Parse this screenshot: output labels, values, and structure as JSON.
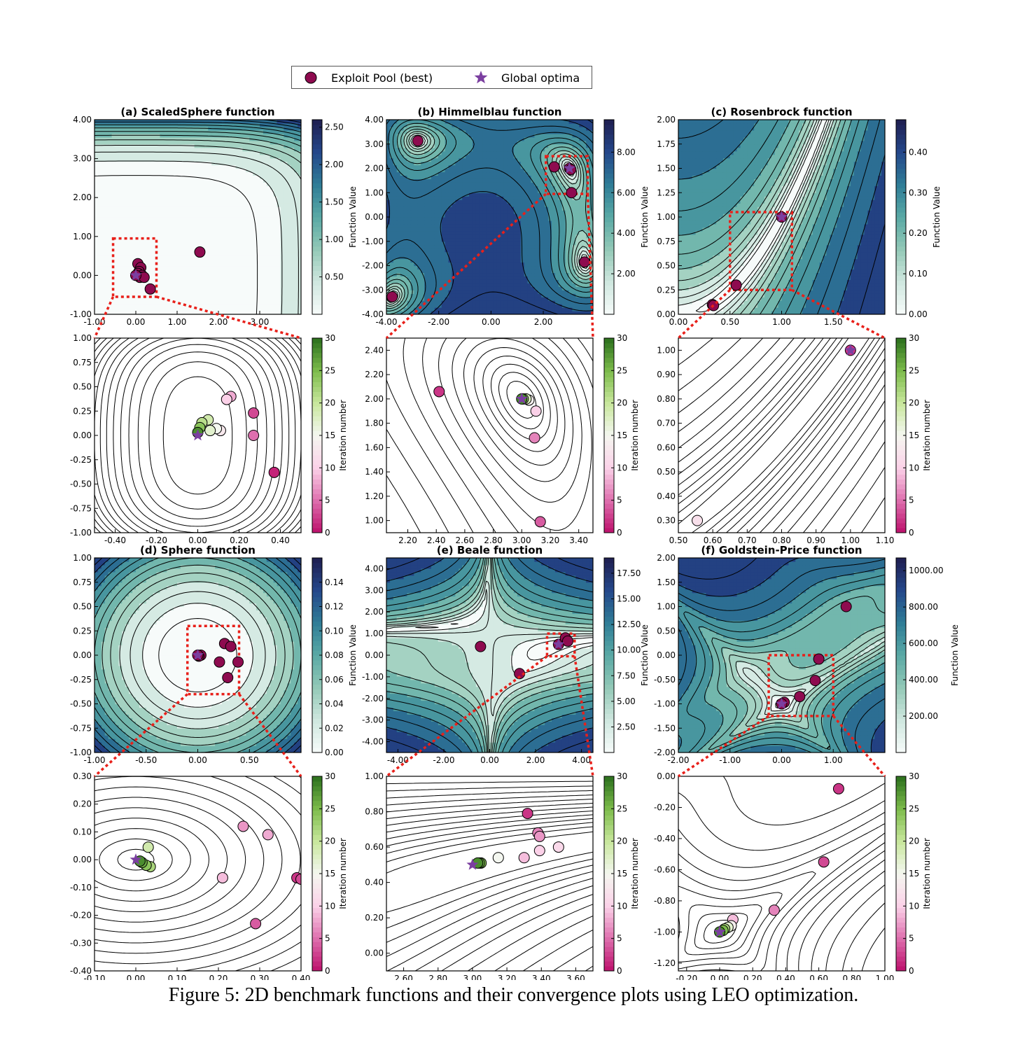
{
  "legend": {
    "items": [
      {
        "label": "Exploit Pool (best)",
        "marker": "circle",
        "color": "#8e0b4f"
      },
      {
        "label": "Global optima",
        "marker": "star",
        "color": "#7b3fa0"
      }
    ]
  },
  "caption": "Figure 5: 2D benchmark functions and their convergence plots using LEO optimization.",
  "colors": {
    "function_colormap": [
      "#f7fbfa",
      "#cfe7df",
      "#93c9b7",
      "#5aa9a5",
      "#2f7d97",
      "#24478a",
      "#1f1e50"
    ],
    "iteration_colormap": [
      "#bd0f6b",
      "#de6fae",
      "#fbd1e8",
      "#f4f7f0",
      "#c8e79c",
      "#7cbb4b",
      "#2b6f1c"
    ],
    "zoom_box": "#e8201a",
    "contour_line": "#000000"
  },
  "chart_data": [
    {
      "id": "a-top",
      "type": "contour",
      "title": "(a) ScaledSphere function",
      "xlim": [
        -1,
        4
      ],
      "ylim": [
        -1,
        4
      ],
      "xticks": [
        "-1.00",
        "0.00",
        "1.00",
        "2.00",
        "3.00"
      ],
      "yticks": [
        "-1.00",
        "0.00",
        "1.00",
        "2.00",
        "3.00",
        "4.00"
      ],
      "colorbar": {
        "label": "Function Value",
        "ticks": [
          "0.50",
          "1.00",
          "1.50",
          "2.00",
          "2.50"
        ],
        "range": [
          0,
          2.6
        ],
        "scheme": "function"
      },
      "zoom_box": [
        -0.55,
        0.5,
        -0.55,
        0.95
      ],
      "points": [
        [
          1.55,
          0.6
        ],
        [
          0.05,
          0.3
        ],
        [
          0.12,
          0.2
        ],
        [
          0.08,
          0.1
        ],
        [
          0.05,
          0.05
        ],
        [
          0.15,
          0.0
        ],
        [
          0.1,
          -0.05
        ],
        [
          0.35,
          -0.35
        ],
        [
          0.2,
          -0.05
        ],
        [
          0.0,
          0.0
        ]
      ],
      "optimum": [
        0,
        0
      ]
    },
    {
      "id": "a-bottom",
      "type": "contour",
      "title": "",
      "xlim": [
        -0.5,
        0.5
      ],
      "ylim": [
        -1,
        1
      ],
      "xticks": [
        "-0.40",
        "-0.20",
        "0.00",
        "0.20",
        "0.40"
      ],
      "yticks": [
        "-1.00",
        "-0.75",
        "-0.50",
        "-0.25",
        "0.00",
        "0.25",
        "0.50",
        "0.75",
        "1.00"
      ],
      "colorbar": {
        "label": "Iteration number",
        "ticks": [
          "0",
          "5",
          "10",
          "15",
          "20",
          "25",
          "30"
        ],
        "range": [
          0,
          30
        ],
        "scheme": "iteration"
      },
      "points": [
        [
          0.37,
          -0.38,
          1
        ],
        [
          0.27,
          0.23,
          3
        ],
        [
          0.27,
          0.0,
          5
        ],
        [
          0.16,
          0.4,
          8
        ],
        [
          0.14,
          0.37,
          10
        ],
        [
          0.11,
          0.05,
          13
        ],
        [
          0.09,
          0.07,
          15
        ],
        [
          0.06,
          0.05,
          17
        ],
        [
          0.05,
          0.16,
          19
        ],
        [
          0.02,
          0.13,
          21
        ],
        [
          0.01,
          0.08,
          24
        ],
        [
          0.0,
          0.03,
          28
        ]
      ],
      "optimum": [
        0,
        0
      ]
    },
    {
      "id": "b-top",
      "type": "contour",
      "title": "(b) Himmelblau function",
      "xlim": [
        -4,
        3.9
      ],
      "ylim": [
        -4,
        4
      ],
      "xticks": [
        "-4.00",
        "-2.00",
        "0.00",
        "2.00"
      ],
      "yticks": [
        "-4.00",
        "-3.00",
        "-2.00",
        "-1.00",
        "0.00",
        "1.00",
        "2.00",
        "3.00",
        "4.00"
      ],
      "colorbar": {
        "label": "Function Value",
        "ticks": [
          "2.00",
          "4.00",
          "6.00",
          "8.00"
        ],
        "range": [
          0,
          9.6
        ],
        "scheme": "function"
      },
      "zoom_box": [
        2.1,
        3.7,
        0.95,
        2.5
      ],
      "points": [
        [
          2.42,
          2.06
        ],
        [
          3.0,
          2.0
        ],
        [
          3.05,
          1.95
        ],
        [
          3.08,
          1.0
        ],
        [
          3.58,
          -1.85
        ],
        [
          -2.8,
          3.13
        ],
        [
          -3.78,
          -3.28
        ]
      ],
      "optimum": [
        3,
        2
      ]
    },
    {
      "id": "b-bottom",
      "type": "contour",
      "title": "",
      "xlim": [
        2.05,
        3.5
      ],
      "ylim": [
        0.9,
        2.5
      ],
      "xticks": [
        "2.20",
        "2.40",
        "2.60",
        "2.80",
        "3.00",
        "3.20",
        "3.40"
      ],
      "yticks": [
        "1.00",
        "1.20",
        "1.40",
        "1.60",
        "1.80",
        "2.00",
        "2.20",
        "2.40"
      ],
      "colorbar": {
        "label": "Iteration number",
        "ticks": [
          "0",
          "5",
          "10",
          "15",
          "20",
          "25",
          "30"
        ],
        "range": [
          0,
          30
        ],
        "scheme": "iteration"
      },
      "points": [
        [
          2.42,
          2.06,
          2
        ],
        [
          3.13,
          0.99,
          4
        ],
        [
          3.09,
          1.68,
          6
        ],
        [
          3.1,
          1.9,
          10
        ],
        [
          3.05,
          1.99,
          14
        ],
        [
          3.03,
          2.0,
          18
        ],
        [
          3.01,
          2.0,
          22
        ],
        [
          3.0,
          2.0,
          28
        ]
      ],
      "optimum": [
        3,
        2
      ]
    },
    {
      "id": "c-top",
      "type": "contour",
      "title": "(c) Rosenbrock function",
      "xlim": [
        0,
        2
      ],
      "ylim": [
        0,
        2
      ],
      "xticks": [
        "0.00",
        "0.50",
        "1.00",
        "1.50"
      ],
      "yticks": [
        "0.00",
        "0.25",
        "0.50",
        "0.75",
        "1.00",
        "1.25",
        "1.50",
        "1.75",
        "2.00"
      ],
      "colorbar": {
        "label": "Function Value",
        "ticks": [
          "0.00",
          "0.10",
          "0.20",
          "0.30",
          "0.40"
        ],
        "range": [
          0,
          0.48
        ],
        "scheme": "function"
      },
      "zoom_box": [
        0.5,
        1.1,
        0.25,
        1.05
      ],
      "points": [
        [
          0.33,
          0.1
        ],
        [
          0.34,
          0.09
        ],
        [
          0.56,
          0.3
        ],
        [
          1.0,
          1.0
        ]
      ],
      "optimum": [
        1,
        1
      ]
    },
    {
      "id": "c-bottom",
      "type": "contour",
      "title": "",
      "xlim": [
        0.5,
        1.1
      ],
      "ylim": [
        0.25,
        1.05
      ],
      "xticks": [
        "0.50",
        "0.60",
        "0.70",
        "0.80",
        "0.90",
        "1.00",
        "1.10"
      ],
      "yticks": [
        "0.30",
        "0.40",
        "0.50",
        "0.60",
        "0.70",
        "0.80",
        "0.90",
        "1.00"
      ],
      "colorbar": {
        "label": "Iteration number",
        "ticks": [
          "0",
          "5",
          "10",
          "15",
          "20",
          "25",
          "30"
        ],
        "range": [
          0,
          30
        ],
        "scheme": "iteration"
      },
      "points": [
        [
          0.555,
          0.3,
          12
        ],
        [
          1.0,
          1.0,
          2
        ]
      ],
      "optimum": [
        1,
        1
      ]
    },
    {
      "id": "d-top",
      "type": "contour",
      "title": "(d) Sphere function",
      "xlim": [
        -1,
        1
      ],
      "ylim": [
        -1,
        1
      ],
      "xticks": [
        "-1.00",
        "-0.50",
        "0.00",
        "0.50"
      ],
      "yticks": [
        "-1.00",
        "-0.75",
        "-0.50",
        "-0.25",
        "0.00",
        "0.25",
        "0.50",
        "0.75",
        "1.00"
      ],
      "colorbar": {
        "label": "Function Value",
        "ticks": [
          "0.00",
          "0.02",
          "0.04",
          "0.06",
          "0.08",
          "0.10",
          "0.12",
          "0.14"
        ],
        "range": [
          0,
          0.16
        ],
        "scheme": "function"
      },
      "zoom_box": [
        -0.1,
        0.4,
        -0.4,
        0.3
      ],
      "points": [
        [
          0.26,
          0.12
        ],
        [
          0.32,
          0.09
        ],
        [
          0.21,
          -0.07
        ],
        [
          0.29,
          -0.23
        ],
        [
          0.39,
          -0.07
        ],
        [
          0.03,
          0.0
        ],
        [
          0.01,
          -0.01
        ],
        [
          0.0,
          0.0
        ]
      ],
      "optimum": [
        0,
        0
      ]
    },
    {
      "id": "d-bottom",
      "type": "contour",
      "title": "",
      "xlim": [
        -0.1,
        0.4
      ],
      "ylim": [
        -0.4,
        0.3
      ],
      "xticks": [
        "-0.10",
        "0.00",
        "0.10",
        "0.20",
        "0.30",
        "0.40"
      ],
      "yticks": [
        "-0.40",
        "-0.30",
        "-0.20",
        "-0.10",
        "0.00",
        "0.10",
        "0.20",
        "0.30"
      ],
      "colorbar": {
        "label": "Iteration number",
        "ticks": [
          "0",
          "5",
          "10",
          "15",
          "20",
          "25",
          "30"
        ],
        "range": [
          0,
          30
        ],
        "scheme": "iteration"
      },
      "points": [
        [
          0.39,
          -0.065,
          2
        ],
        [
          0.4,
          -0.07,
          3
        ],
        [
          0.29,
          -0.23,
          4
        ],
        [
          0.26,
          0.12,
          7
        ],
        [
          0.32,
          0.09,
          8
        ],
        [
          0.21,
          -0.065,
          9
        ],
        [
          0.03,
          0.045,
          19
        ],
        [
          0.035,
          -0.025,
          22
        ],
        [
          0.025,
          -0.02,
          24
        ],
        [
          0.015,
          -0.01,
          26
        ],
        [
          0.01,
          -0.005,
          28
        ]
      ],
      "optimum": [
        0,
        0
      ]
    },
    {
      "id": "e-top",
      "type": "contour",
      "title": "(e) Beale function",
      "xlim": [
        -4.5,
        4.5
      ],
      "ylim": [
        -4.5,
        4.5
      ],
      "xticks": [
        "-4.00",
        "-2.00",
        "0.00",
        "2.00",
        "4.00"
      ],
      "yticks": [
        "-4.00",
        "-3.00",
        "-2.00",
        "-1.00",
        "0.00",
        "1.00",
        "2.00",
        "3.00",
        "4.00"
      ],
      "colorbar": {
        "label": "Function Value",
        "ticks": [
          "2.50",
          "5.00",
          "7.50",
          "10.00",
          "12.50",
          "15.00",
          "17.50"
        ],
        "range": [
          0,
          19
        ],
        "scheme": "function"
      },
      "zoom_box": [
        2.5,
        3.7,
        -0.05,
        1.0
      ],
      "points": [
        [
          -0.4,
          0.4
        ],
        [
          1.3,
          -0.85
        ],
        [
          3.0,
          0.5
        ],
        [
          3.3,
          0.8
        ],
        [
          3.4,
          0.65
        ]
      ],
      "optimum": [
        3,
        0.5
      ]
    },
    {
      "id": "e-bottom",
      "type": "contour",
      "title": "",
      "xlim": [
        2.5,
        3.7
      ],
      "ylim": [
        -0.1,
        1.0
      ],
      "xticks": [
        "2.60",
        "2.80",
        "3.00",
        "3.20",
        "3.40",
        "3.60"
      ],
      "yticks": [
        "0.00",
        "0.20",
        "0.40",
        "0.60",
        "0.80",
        "1.00"
      ],
      "colorbar": {
        "label": "Iteration number",
        "ticks": [
          "0",
          "5",
          "10",
          "15",
          "20",
          "25",
          "30"
        ],
        "range": [
          0,
          30
        ],
        "scheme": "iteration"
      },
      "points": [
        [
          3.32,
          0.79,
          2
        ],
        [
          3.38,
          0.68,
          6
        ],
        [
          3.39,
          0.66,
          7
        ],
        [
          3.39,
          0.58,
          10
        ],
        [
          3.5,
          0.6,
          11
        ],
        [
          3.3,
          0.54,
          9
        ],
        [
          3.15,
          0.54,
          15
        ],
        [
          3.05,
          0.51,
          24
        ],
        [
          3.04,
          0.51,
          26
        ],
        [
          3.03,
          0.51,
          28
        ]
      ],
      "optimum": [
        3,
        0.5
      ]
    },
    {
      "id": "f-top",
      "type": "contour",
      "title": "(f) Goldstein-Price function",
      "xlim": [
        -2,
        2
      ],
      "ylim": [
        -2,
        2
      ],
      "xticks": [
        "-2.00",
        "-1.00",
        "0.00",
        "1.00"
      ],
      "yticks": [
        "-2.00",
        "-1.50",
        "-1.00",
        "-0.50",
        "0.00",
        "0.50",
        "1.00",
        "1.50",
        "2.00"
      ],
      "colorbar": {
        "label": "Function Value",
        "ticks": [
          "200.00",
          "400.00",
          "600.00",
          "800.00",
          "1000.00"
        ],
        "range": [
          0,
          1070
        ],
        "scheme": "function"
      },
      "zoom_box": [
        -0.25,
        1.0,
        -1.25,
        0.0
      ],
      "points": [
        [
          1.25,
          1.0
        ],
        [
          0.72,
          -0.08
        ],
        [
          0.65,
          -0.52
        ],
        [
          0.35,
          -0.85
        ],
        [
          0.05,
          -0.97
        ],
        [
          0.0,
          -1.0
        ]
      ],
      "optimum": [
        0,
        -1
      ]
    },
    {
      "id": "f-bottom",
      "type": "contour",
      "title": "",
      "xlim": [
        -0.25,
        1.0
      ],
      "ylim": [
        -1.25,
        0.0
      ],
      "xticks": [
        "-0.20",
        "0.00",
        "0.20",
        "0.40",
        "0.60",
        "0.80",
        "1.00"
      ],
      "yticks": [
        "-1.20",
        "-1.00",
        "-0.80",
        "-0.60",
        "-0.40",
        "-0.20",
        "0.00"
      ],
      "colorbar": {
        "label": "Iteration number",
        "ticks": [
          "0",
          "5",
          "10",
          "15",
          "20",
          "25",
          "30"
        ],
        "range": [
          0,
          30
        ],
        "scheme": "iteration"
      },
      "points": [
        [
          0.72,
          -0.08,
          2
        ],
        [
          0.63,
          -0.55,
          3
        ],
        [
          0.33,
          -0.86,
          6
        ],
        [
          0.08,
          -0.92,
          9
        ],
        [
          0.07,
          -0.96,
          14
        ],
        [
          0.05,
          -0.97,
          17
        ],
        [
          0.03,
          -0.98,
          22
        ],
        [
          0.02,
          -0.99,
          25
        ],
        [
          0.0,
          -1.0,
          28
        ]
      ],
      "optimum": [
        0,
        -1
      ]
    }
  ]
}
